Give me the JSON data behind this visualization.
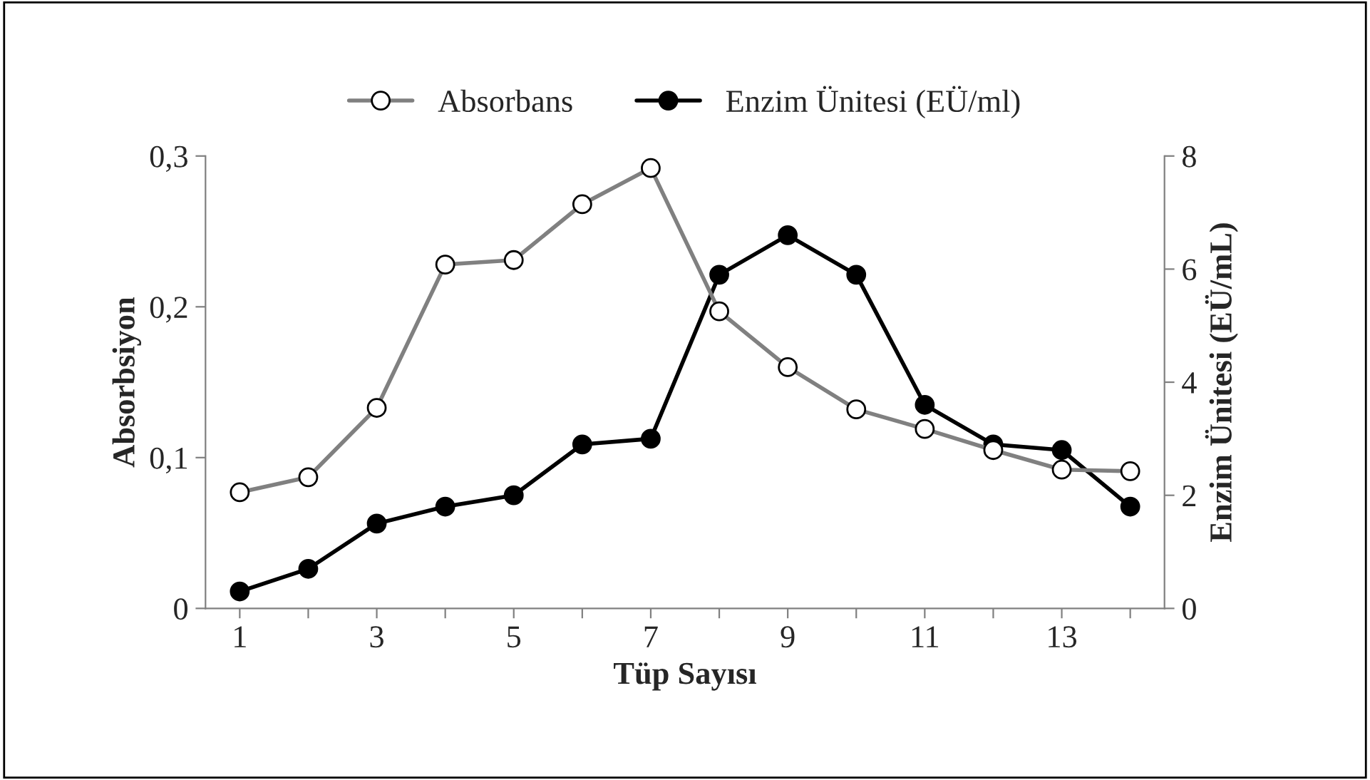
{
  "chart_data": {
    "type": "line",
    "xlabel": "Tüp Sayısı",
    "ylabel": "Absorbsiyon",
    "y2label": "Enzim Ünitesi (EÜ/mL)",
    "x": [
      1,
      2,
      3,
      4,
      5,
      6,
      7,
      8,
      9,
      10,
      11,
      12,
      13,
      14
    ],
    "xlim": [
      0.5,
      14.5
    ],
    "xticks": [
      1,
      {
        "value": 2,
        "label": null
      },
      3,
      {
        "value": 4,
        "label": null
      },
      5,
      {
        "value": 6,
        "label": null
      },
      7,
      {
        "value": 8,
        "label": null
      },
      9,
      {
        "value": 10,
        "label": null
      },
      11,
      {
        "value": 12,
        "label": null
      },
      13,
      {
        "value": 14,
        "label": null
      }
    ],
    "ylim": [
      0,
      0.3
    ],
    "yticks": [
      0,
      {
        "value": 0.1,
        "label": "0,1"
      },
      {
        "value": 0.2,
        "label": "0,2"
      },
      {
        "value": 0.3,
        "label": "0,3"
      }
    ],
    "y2lim": [
      0,
      8
    ],
    "y2ticks": [
      0,
      2,
      4,
      6,
      8
    ],
    "series": [
      {
        "name": "Absorbans",
        "color": "#808080",
        "marker": "circle",
        "values": [
          0.077,
          0.087,
          0.133,
          0.228,
          0.231,
          0.268,
          0.292,
          0.197,
          0.16,
          0.132,
          0.119,
          0.105,
          0.092,
          0.091
        ]
      },
      {
        "name": "Enzim Ünitesi (EÜ/ml)",
        "color": "#000000",
        "marker": "circle",
        "axis": "y2",
        "values": [
          0.3,
          0.7,
          1.5,
          1.8,
          2.0,
          2.9,
          3.0,
          5.9,
          6.6,
          5.9,
          3.6,
          2.9,
          2.8,
          1.8
        ]
      }
    ],
    "legend": "top",
    "grid": false,
    "line_style": "solid"
  }
}
